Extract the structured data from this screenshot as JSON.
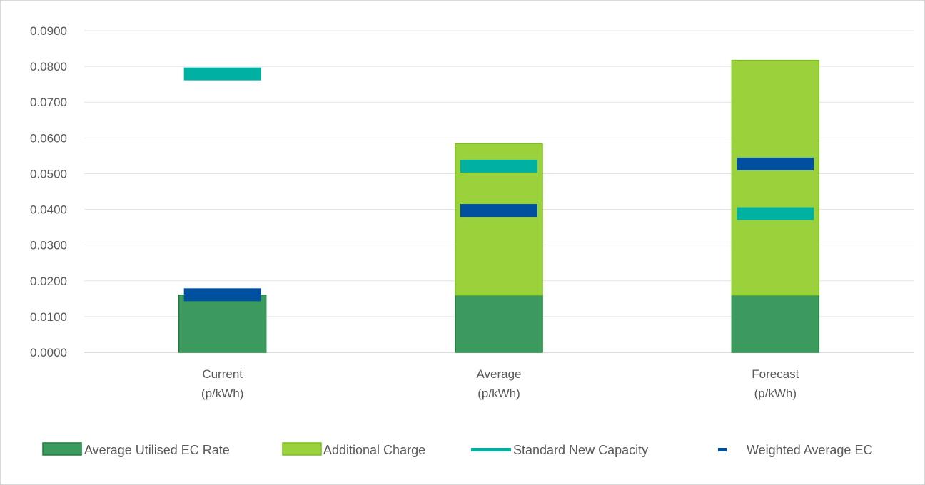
{
  "chart_data": {
    "type": "bar",
    "categories": [
      [
        "Current",
        "(p/kWh)"
      ],
      [
        "Average",
        "(p/kWh)"
      ],
      [
        "Forecast",
        "(p/kWh)"
      ]
    ],
    "ylim": [
      0,
      0.09
    ],
    "yticks": [
      "0.0000",
      "0.0100",
      "0.0200",
      "0.0300",
      "0.0400",
      "0.0500",
      "0.0600",
      "0.0700",
      "0.0800",
      "0.0900"
    ],
    "grid": true,
    "legend_position": "bottom",
    "series": [
      {
        "name": "Average Utilised EC Rate",
        "kind": "stacked-bar",
        "values": [
          0.016,
          0.016,
          0.016
        ],
        "color": "#3c9a5f",
        "edge": "#1d7f3a"
      },
      {
        "name": "Additional Charge",
        "kind": "stacked-bar",
        "values": [
          0,
          0.0424,
          0.0657
        ],
        "color": "#9bd23c",
        "edge": "#7cbf1f"
      },
      {
        "name": "Standard New Capacity",
        "kind": "marker",
        "values": [
          0.0779,
          0.0521,
          0.0388
        ],
        "color": "#00b0a0"
      },
      {
        "name": "Weighted Average EC",
        "kind": "marker",
        "values": [
          0.0161,
          0.0397,
          0.0527
        ],
        "color": "#0050a0"
      }
    ]
  }
}
